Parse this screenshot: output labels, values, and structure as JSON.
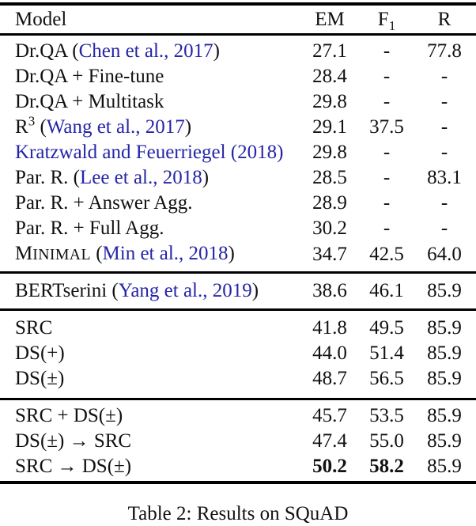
{
  "page": {
    "background_color": "#ffffff",
    "text_color": "#111111",
    "link_color": "#2525a8",
    "rule_color": "#000000"
  },
  "header": {
    "model_label": "Model",
    "em_label": "EM",
    "f1_base": "F",
    "f1_sub": "1",
    "r_label": "R"
  },
  "caption": "Table 2: Results on SQuAD",
  "table": {
    "columns": [
      "Model",
      "EM",
      "F1",
      "R"
    ],
    "blocks": [
      {
        "rows": [
          {
            "name": [
              {
                "t": "Dr.QA (",
                "s": "plain"
              },
              {
                "t": "Chen et al., 2017",
                "s": "link"
              },
              {
                "t": ")",
                "s": "plain"
              }
            ],
            "em": "27.1",
            "f1": "-",
            "r": "77.8"
          },
          {
            "name": [
              {
                "t": "Dr.QA + Fine-tune",
                "s": "plain"
              }
            ],
            "em": "28.4",
            "f1": "-",
            "r": "-"
          },
          {
            "name": [
              {
                "t": "Dr.QA + Multitask",
                "s": "plain"
              }
            ],
            "em": "29.8",
            "f1": "-",
            "r": "-"
          },
          {
            "name": [
              {
                "t": "R",
                "s": "plain"
              },
              {
                "t": "3",
                "s": "sup"
              },
              {
                "t": " (",
                "s": "plain"
              },
              {
                "t": "Wang et al., 2017",
                "s": "link"
              },
              {
                "t": ")",
                "s": "plain"
              }
            ],
            "em": "29.1",
            "f1": "37.5",
            "r": "-"
          },
          {
            "name": [
              {
                "t": "Kratzwald and Feuerriegel (2018)",
                "s": "link"
              }
            ],
            "em": "29.8",
            "f1": "-",
            "r": "-"
          },
          {
            "name": [
              {
                "t": "Par. R. (",
                "s": "plain"
              },
              {
                "t": "Lee et al., 2018",
                "s": "link"
              },
              {
                "t": ")",
                "s": "plain"
              }
            ],
            "em": "28.5",
            "f1": "-",
            "r": "83.1"
          },
          {
            "name": [
              {
                "t": "Par. R. + Answer Agg.",
                "s": "plain"
              }
            ],
            "em": "28.9",
            "f1": "-",
            "r": "-"
          },
          {
            "name": [
              {
                "t": "Par. R. + Full Agg.",
                "s": "plain"
              }
            ],
            "em": "30.2",
            "f1": "-",
            "r": "-"
          },
          {
            "name": [
              {
                "t": "M",
                "s": "plain"
              },
              {
                "t": "INIMAL",
                "s": "sc"
              },
              {
                "t": " (",
                "s": "plain"
              },
              {
                "t": "Min et al., 2018",
                "s": "link"
              },
              {
                "t": ")",
                "s": "plain"
              }
            ],
            "em": "34.7",
            "f1": "42.5",
            "r": "64.0"
          }
        ]
      },
      {
        "rows": [
          {
            "name": [
              {
                "t": "BERTserini (",
                "s": "plain"
              },
              {
                "t": "Yang et al., 2019",
                "s": "link"
              },
              {
                "t": ")",
                "s": "plain"
              }
            ],
            "em": "38.6",
            "f1": "46.1",
            "r": "85.9"
          }
        ]
      },
      {
        "rows": [
          {
            "name": [
              {
                "t": "SRC",
                "s": "plain"
              }
            ],
            "em": "41.8",
            "f1": "49.5",
            "r": "85.9"
          },
          {
            "name": [
              {
                "t": "DS(+)",
                "s": "plain"
              }
            ],
            "em": "44.0",
            "f1": "51.4",
            "r": "85.9"
          },
          {
            "name": [
              {
                "t": "DS(±)",
                "s": "plain"
              }
            ],
            "em": "48.7",
            "f1": "56.5",
            "r": "85.9"
          }
        ]
      },
      {
        "rows": [
          {
            "name": [
              {
                "t": "SRC + DS(±)",
                "s": "plain"
              }
            ],
            "em": "45.7",
            "f1": "53.5",
            "r": "85.9"
          },
          {
            "name": [
              {
                "t": "DS(±) → SRC",
                "s": "plain"
              }
            ],
            "em": "47.4",
            "f1": "55.0",
            "r": "85.9"
          },
          {
            "name": [
              {
                "t": "SRC → DS(±)",
                "s": "plain"
              }
            ],
            "em": "50.2",
            "f1": "58.2",
            "r": "85.9",
            "em_bold": true,
            "f1_bold": true
          }
        ]
      }
    ]
  }
}
